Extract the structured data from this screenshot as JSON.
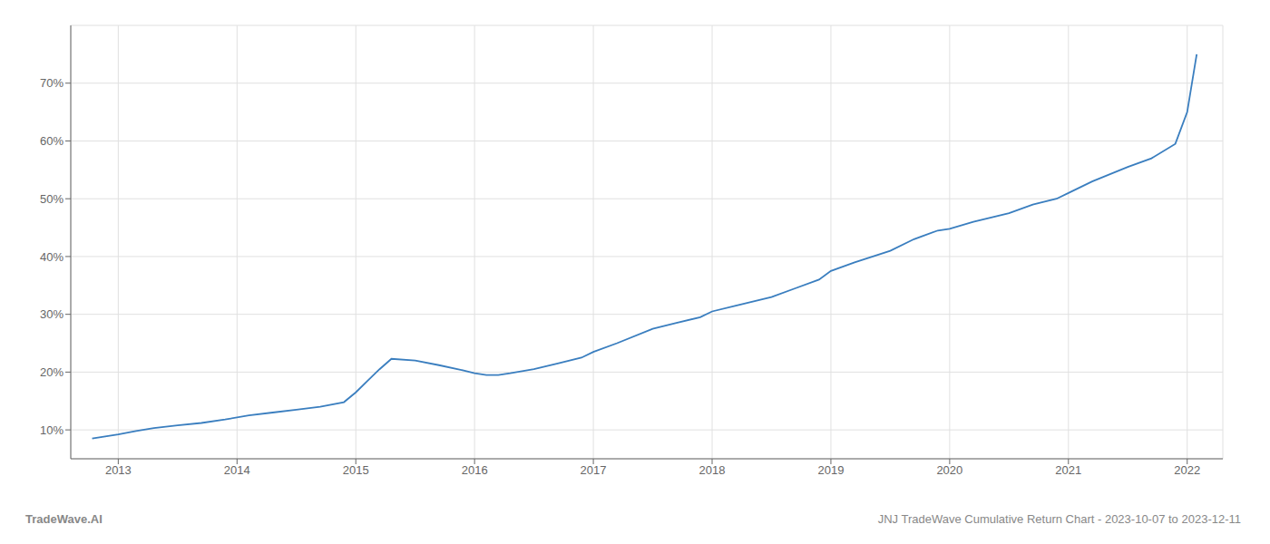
{
  "chart_data": {
    "type": "line",
    "title": "JNJ TradeWave Cumulative Return Chart - 2023-10-07 to 2023-12-11",
    "annotations": [
      "TradeWave.AI"
    ],
    "color": "#3a7ebf",
    "grid": true,
    "x": [
      2012.78,
      2013.0,
      2013.15,
      2013.3,
      2013.5,
      2013.7,
      2013.9,
      2014.1,
      2014.3,
      2014.5,
      2014.7,
      2014.9,
      2015.0,
      2015.1,
      2015.2,
      2015.3,
      2015.5,
      2015.7,
      2015.9,
      2016.0,
      2016.1,
      2016.2,
      2016.3,
      2016.5,
      2016.7,
      2016.9,
      2017.0,
      2017.2,
      2017.5,
      2017.7,
      2017.9,
      2018.0,
      2018.2,
      2018.5,
      2018.7,
      2018.9,
      2019.0,
      2019.2,
      2019.5,
      2019.7,
      2019.9,
      2020.0,
      2020.2,
      2020.5,
      2020.7,
      2020.9,
      2021.0,
      2021.2,
      2021.5,
      2021.7,
      2021.9,
      2022.0,
      2022.08
    ],
    "values": [
      8.5,
      9.2,
      9.8,
      10.3,
      10.8,
      11.2,
      11.8,
      12.5,
      13.0,
      13.5,
      14.0,
      14.8,
      16.5,
      18.5,
      20.5,
      22.3,
      22.0,
      21.2,
      20.3,
      19.8,
      19.5,
      19.5,
      19.8,
      20.5,
      21.5,
      22.5,
      23.5,
      25.0,
      27.5,
      28.5,
      29.5,
      30.5,
      31.5,
      33.0,
      34.5,
      36.0,
      37.5,
      39.0,
      41.0,
      43.0,
      44.5,
      44.8,
      46.0,
      47.5,
      49.0,
      50.0,
      51.0,
      53.0,
      55.5,
      57.0,
      59.5,
      65.0,
      75.0
    ],
    "xlim": [
      2012.6,
      2022.3
    ],
    "ylim": [
      5,
      80
    ],
    "xticks": [
      2013,
      2014,
      2015,
      2016,
      2017,
      2018,
      2019,
      2020,
      2021,
      2022
    ],
    "yticks": [
      {
        "value": 10,
        "label": "10%"
      },
      {
        "value": 20,
        "label": "20%"
      },
      {
        "value": 30,
        "label": "30%"
      },
      {
        "value": 40,
        "label": "40%"
      },
      {
        "value": 50,
        "label": "50%"
      },
      {
        "value": 60,
        "label": "60%"
      },
      {
        "value": 70,
        "label": "70%"
      }
    ]
  }
}
